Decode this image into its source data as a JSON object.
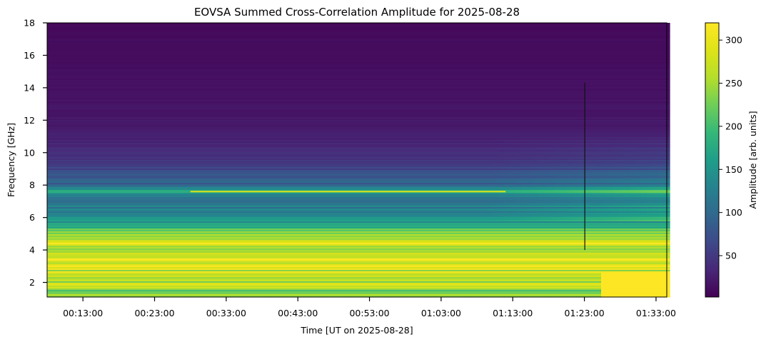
{
  "chart_data": {
    "type": "heatmap",
    "title": "EOVSA Summed Cross-Correlation Amplitude for 2025-08-28",
    "xlabel": "Time [UT on 2025-08-28]",
    "ylabel": "Frequency [GHz]",
    "x_range_minutes_ut": [
      8.0,
      94.5
    ],
    "ylim": [
      1.1,
      18.0
    ],
    "x_ticks": [
      {
        "minute": 13,
        "label": "00:13:00"
      },
      {
        "minute": 23,
        "label": "00:23:00"
      },
      {
        "minute": 33,
        "label": "00:33:00"
      },
      {
        "minute": 43,
        "label": "00:43:00"
      },
      {
        "minute": 53,
        "label": "00:53:00"
      },
      {
        "minute": 63,
        "label": "01:03:00"
      },
      {
        "minute": 73,
        "label": "01:13:00"
      },
      {
        "minute": 83,
        "label": "01:23:00"
      },
      {
        "minute": 93,
        "label": "01:33:00"
      }
    ],
    "y_ticks": [
      {
        "value": 2,
        "label": "2"
      },
      {
        "value": 4,
        "label": "4"
      },
      {
        "value": 6,
        "label": "6"
      },
      {
        "value": 8,
        "label": "8"
      },
      {
        "value": 10,
        "label": "10"
      },
      {
        "value": 12,
        "label": "12"
      },
      {
        "value": 14,
        "label": "14"
      },
      {
        "value": 16,
        "label": "16"
      },
      {
        "value": 18,
        "label": "18"
      }
    ],
    "colorbar": {
      "label": "Amplitude [arb. units]",
      "colormap": "viridis",
      "range": [
        2,
        320
      ],
      "ticks": [
        {
          "value": 50,
          "label": "50"
        },
        {
          "value": 100,
          "label": "100"
        },
        {
          "value": 150,
          "label": "150"
        },
        {
          "value": 200,
          "label": "200"
        },
        {
          "value": 250,
          "label": "250"
        },
        {
          "value": 300,
          "label": "300"
        }
      ]
    },
    "frequency_profile": [
      {
        "freq": 1.1,
        "amp": 250
      },
      {
        "freq": 1.5,
        "amp": 245
      },
      {
        "freq": 2.0,
        "amp": 250
      },
      {
        "freq": 2.5,
        "amp": 262
      },
      {
        "freq": 2.9,
        "amp": 300
      },
      {
        "freq": 3.5,
        "amp": 300
      },
      {
        "freq": 4.0,
        "amp": 280
      },
      {
        "freq": 4.5,
        "amp": 270
      },
      {
        "freq": 5.0,
        "amp": 250
      },
      {
        "freq": 5.5,
        "amp": 180
      },
      {
        "freq": 6.0,
        "amp": 135
      },
      {
        "freq": 7.0,
        "amp": 112
      },
      {
        "freq": 7.6,
        "amp": 170
      },
      {
        "freq": 8.0,
        "amp": 92
      },
      {
        "freq": 9.0,
        "amp": 60
      },
      {
        "freq": 10.0,
        "amp": 38
      },
      {
        "freq": 11.0,
        "amp": 27
      },
      {
        "freq": 12.0,
        "amp": 20
      },
      {
        "freq": 14.0,
        "amp": 15
      },
      {
        "freq": 16.0,
        "amp": 11
      },
      {
        "freq": 18.0,
        "amp": 9
      }
    ],
    "features": [
      {
        "name": "RFI line",
        "freq": 7.6,
        "amp": 290,
        "time_range": [
          28,
          72
        ]
      },
      {
        "name": "broadband enhancement",
        "freq_range": [
          1.1,
          2.6
        ],
        "amp": 320,
        "time_range": [
          85,
          94.5
        ]
      },
      {
        "name": "data gap",
        "time": 83.0,
        "freq_range": [
          4.0,
          14.3
        ]
      }
    ]
  }
}
